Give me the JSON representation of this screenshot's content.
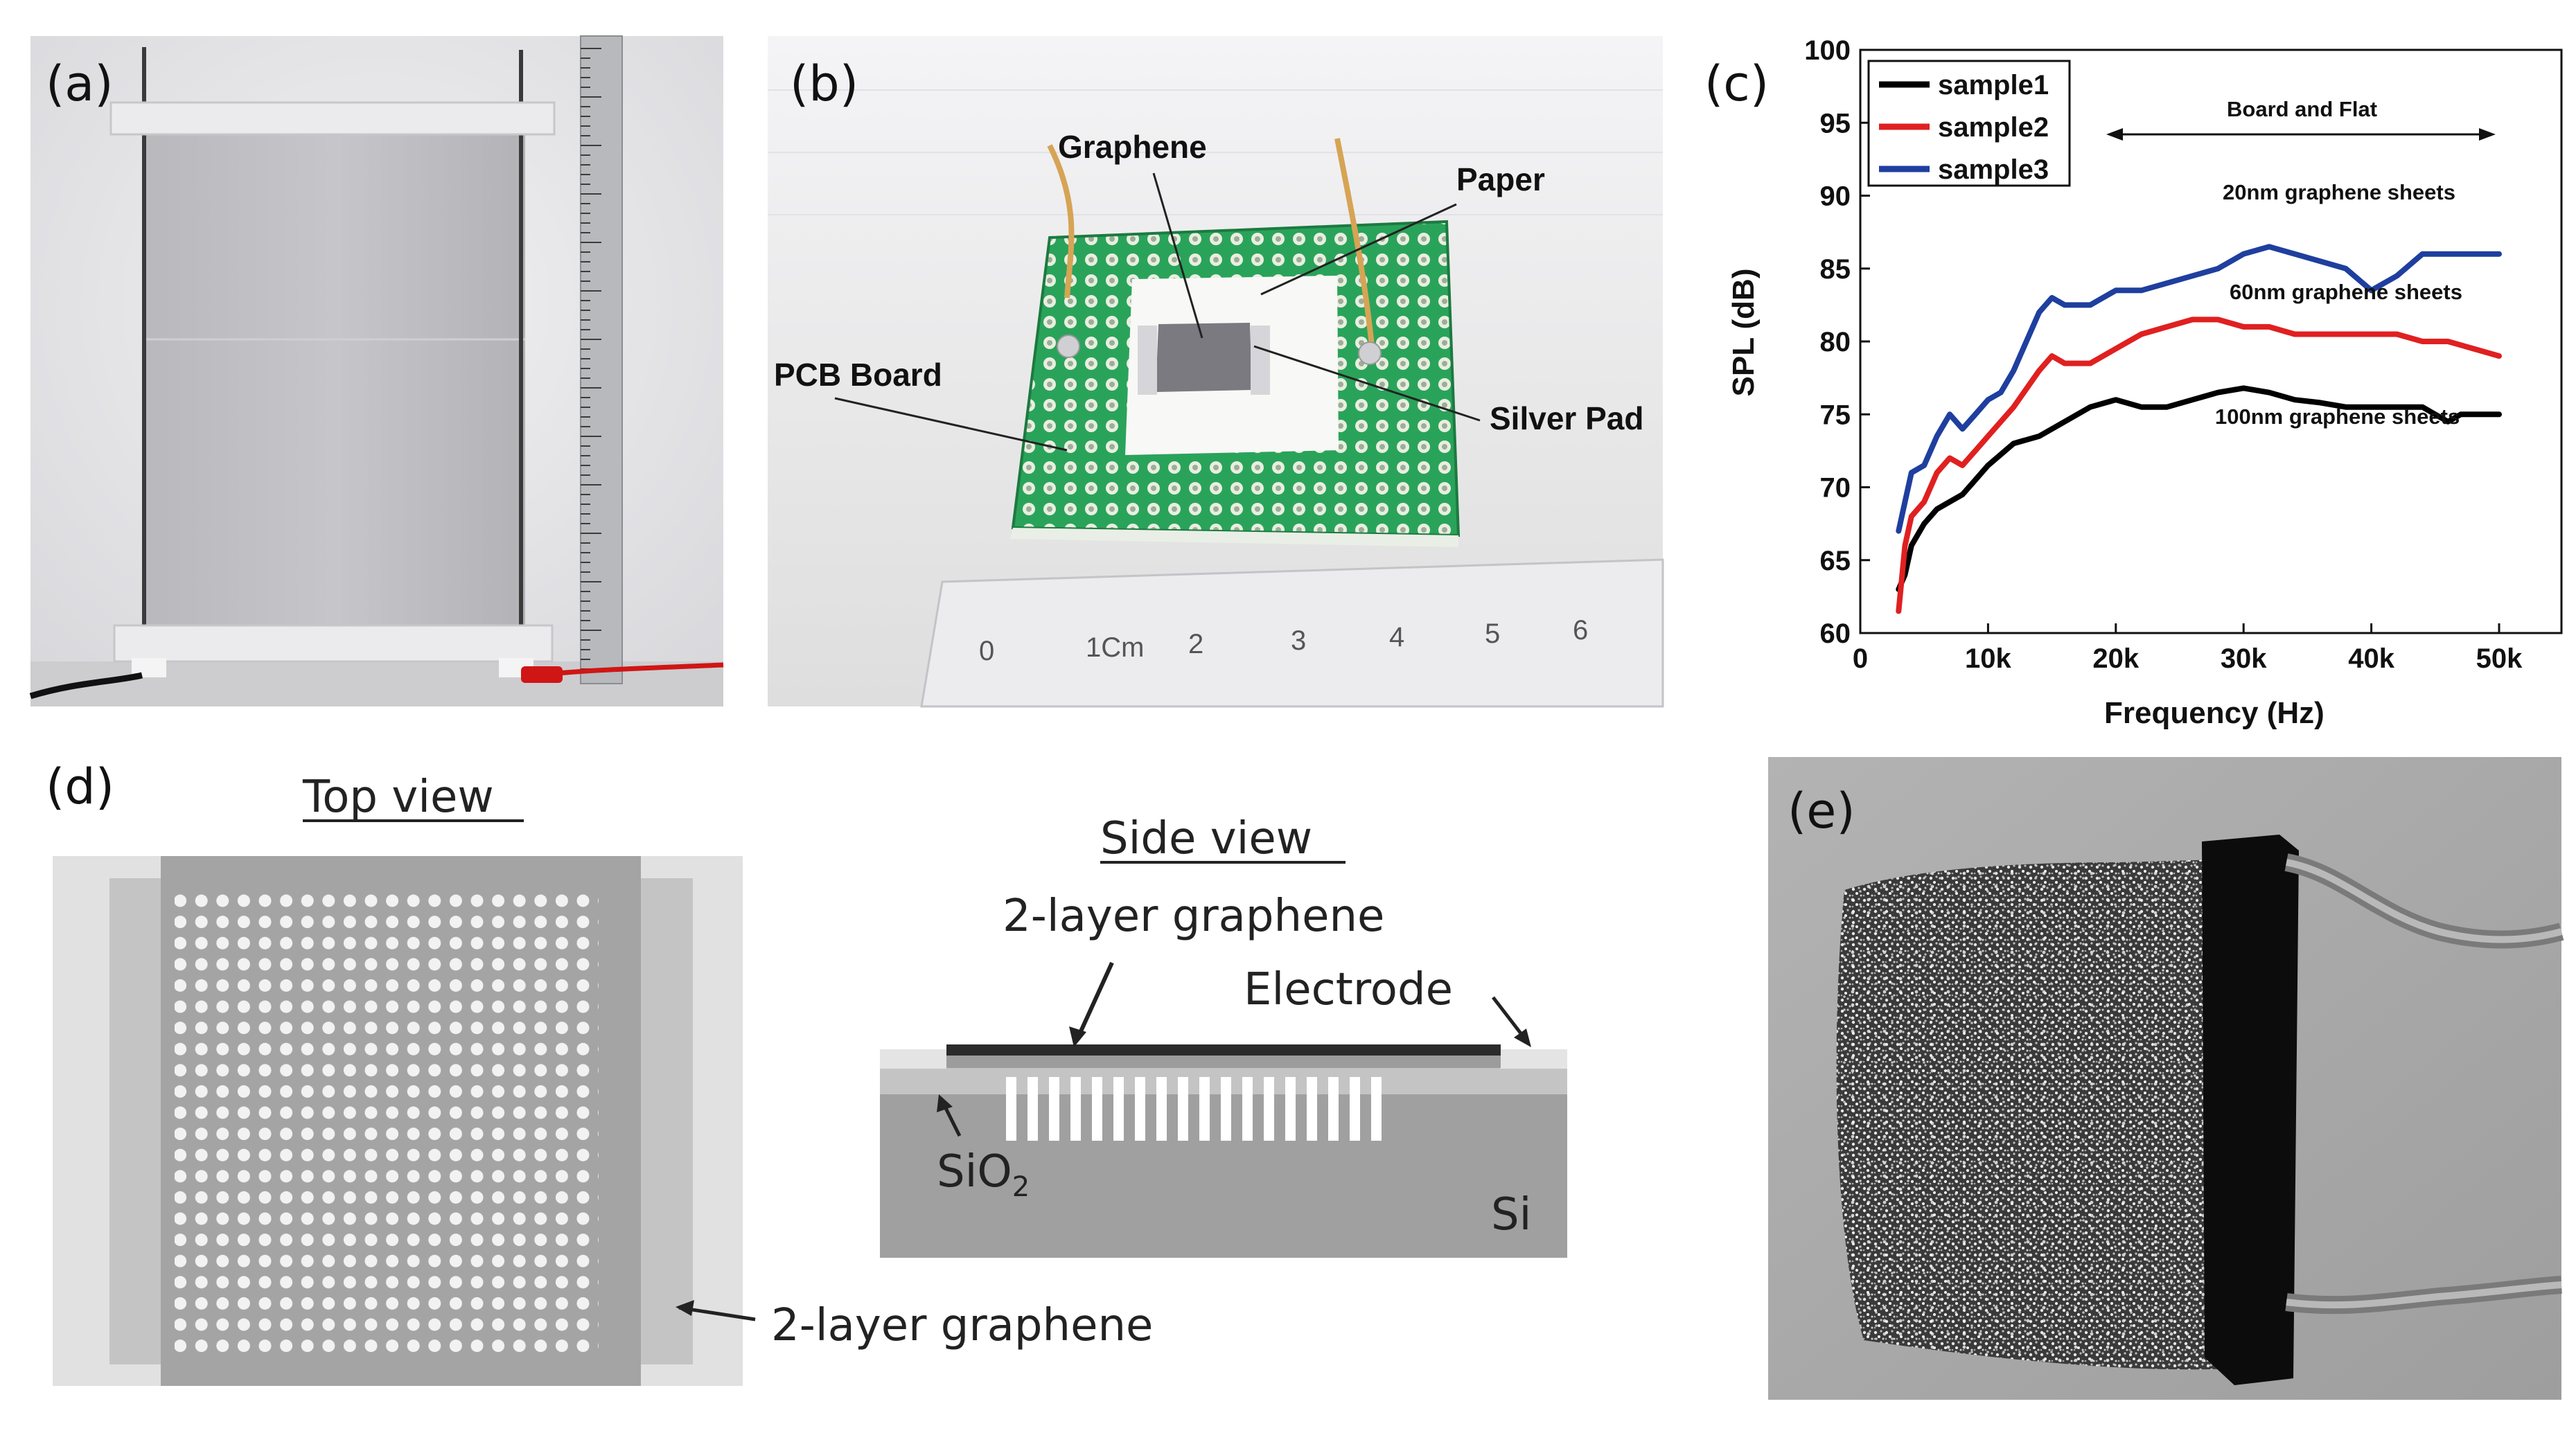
{
  "panels": {
    "a": {
      "label": "(a)"
    },
    "b": {
      "label": "(b)",
      "annotations": {
        "graphene": "Graphene",
        "paper": "Paper",
        "pcb": "PCB Board",
        "silver": "Silver Pad"
      },
      "ruler_labels": [
        "0",
        "1Cm",
        "2",
        "3",
        "4",
        "5",
        "6"
      ]
    },
    "c": {
      "label": "(c)"
    },
    "d": {
      "label": "(d)",
      "top_view_title": "Top view",
      "side_view_title": "Side view",
      "top_graphene_label": "2-layer graphene",
      "side_graphene_label": "2-layer graphene",
      "electrode_label": "Electrode",
      "sio2_label": "SiO",
      "sio2_sub": "2",
      "si_label": "Si"
    },
    "e": {
      "label": "(e)"
    }
  },
  "chart_data": {
    "type": "line",
    "xlabel": "Frequency (Hz)",
    "ylabel": "SPL (dB)",
    "xlim": [
      0,
      50000
    ],
    "ylim": [
      60,
      100
    ],
    "xticks": [
      0,
      10000,
      20000,
      30000,
      40000,
      50000
    ],
    "xtick_labels": [
      "0",
      "10k",
      "20k",
      "30k",
      "40k",
      "50k"
    ],
    "yticks": [
      60,
      65,
      70,
      75,
      80,
      85,
      90,
      95,
      100
    ],
    "ytick_labels": [
      "60",
      "65",
      "70",
      "75",
      "80",
      "85",
      "90",
      "95",
      "100"
    ],
    "legend_position": "top-left",
    "grid": false,
    "annotations": {
      "band": "Board and Flat",
      "s3": "20nm graphene sheets",
      "s2": "60nm graphene sheets",
      "s1": "100nm graphene sheets"
    },
    "series": [
      {
        "name": "sample1",
        "color": "#000000",
        "x": [
          3000,
          3500,
          4000,
          5000,
          6000,
          7000,
          8000,
          9000,
          10000,
          12000,
          14000,
          16000,
          18000,
          20000,
          22000,
          24000,
          26000,
          28000,
          30000,
          32000,
          34000,
          36000,
          38000,
          40000,
          42000,
          44000,
          45000,
          46000,
          47000,
          48000,
          50000
        ],
        "y": [
          63,
          64,
          66,
          67.5,
          68.5,
          69,
          69.5,
          70.5,
          71.5,
          73,
          73.5,
          74.5,
          75.5,
          76,
          75.5,
          75.5,
          76,
          76.5,
          76.8,
          76.5,
          76,
          75.8,
          75.5,
          75.5,
          75.5,
          75.5,
          75,
          74.5,
          75,
          75,
          75
        ]
      },
      {
        "name": "sample2",
        "color": "#e02020",
        "x": [
          3000,
          3500,
          4000,
          5000,
          6000,
          7000,
          8000,
          9000,
          10000,
          12000,
          14000,
          15000,
          16000,
          18000,
          20000,
          22000,
          24000,
          26000,
          28000,
          30000,
          32000,
          34000,
          36000,
          38000,
          40000,
          42000,
          44000,
          46000,
          48000,
          50000
        ],
        "y": [
          61.5,
          66,
          68,
          69,
          71,
          72,
          71.5,
          72.5,
          73.5,
          75.5,
          78,
          79,
          78.5,
          78.5,
          79.5,
          80.5,
          81,
          81.5,
          81.5,
          81,
          81,
          80.5,
          80.5,
          80.5,
          80.5,
          80.5,
          80,
          80,
          79.5,
          79
        ]
      },
      {
        "name": "sample3",
        "color": "#1f3f9f",
        "x": [
          3000,
          3500,
          4000,
          5000,
          6000,
          7000,
          8000,
          9000,
          10000,
          11000,
          12000,
          13000,
          14000,
          15000,
          16000,
          18000,
          20000,
          22000,
          24000,
          26000,
          28000,
          30000,
          32000,
          34000,
          36000,
          38000,
          40000,
          42000,
          44000,
          46000,
          48000,
          50000
        ],
        "y": [
          67,
          69,
          71,
          71.5,
          73.5,
          75,
          74,
          75,
          76,
          76.5,
          78,
          80,
          82,
          83,
          82.5,
          82.5,
          83.5,
          83.5,
          84,
          84.5,
          85,
          86,
          86.5,
          86,
          85.5,
          85,
          83.5,
          84.5,
          86,
          86,
          86,
          86
        ]
      }
    ]
  }
}
